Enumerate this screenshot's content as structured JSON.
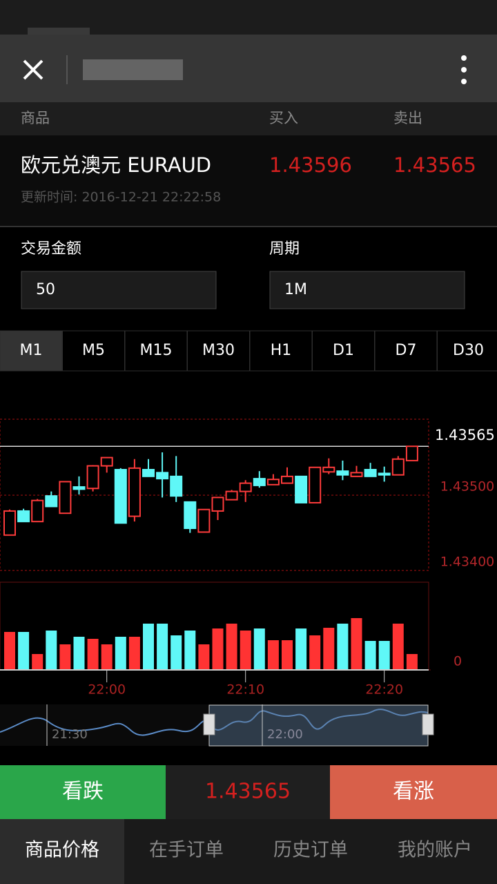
{
  "table_header": {
    "product": "商品",
    "buy": "买入",
    "sell": "卖出"
  },
  "quote": {
    "name": "欧元兑澳元 EURAUD",
    "buy": "1.43596",
    "sell": "1.43565",
    "update_time": "更新时间: 2016-12-21 22:22:58"
  },
  "form": {
    "amount_label": "交易金额",
    "amount": "50",
    "period_label": "周期",
    "period": "1M"
  },
  "timeframes": [
    "M1",
    "M5",
    "M15",
    "M30",
    "H1",
    "D1",
    "D7",
    "D30"
  ],
  "active_timeframe": 0,
  "chart_data": {
    "type": "candlestick",
    "up_color": "#ff3b3b",
    "down_color": "#5ff7f7",
    "series": {
      "open": [
        1.43447,
        1.43479,
        1.43465,
        1.43499,
        1.43476,
        1.43511,
        1.43509,
        1.43539,
        1.43534,
        1.43472,
        1.43534,
        1.4353,
        1.43525,
        1.43491,
        1.43451,
        1.43479,
        1.43494,
        1.43505,
        1.43522,
        1.43514,
        1.43516,
        1.43525,
        1.4349,
        1.43531,
        1.43532,
        1.43525,
        1.43534,
        1.43529,
        1.43527,
        1.43546
      ],
      "high": [
        1.43481,
        1.43482,
        1.43495,
        1.43505,
        1.43518,
        1.43525,
        1.4354,
        1.4355,
        1.43536,
        1.43548,
        1.43548,
        1.43557,
        1.43552,
        1.43491,
        1.43481,
        1.43497,
        1.43507,
        1.4352,
        1.43532,
        1.43528,
        1.43537,
        1.43525,
        1.43537,
        1.43549,
        1.43546,
        1.43539,
        1.43543,
        1.43538,
        1.43552,
        1.43565
      ],
      "low": [
        1.43447,
        1.43465,
        1.43465,
        1.43485,
        1.43476,
        1.43501,
        1.43505,
        1.4353,
        1.43463,
        1.43465,
        1.43525,
        1.43497,
        1.43491,
        1.4345,
        1.43451,
        1.43467,
        1.43494,
        1.43491,
        1.4351,
        1.43514,
        1.43516,
        1.4349,
        1.4349,
        1.43528,
        1.4352,
        1.43525,
        1.43525,
        1.43518,
        1.43527,
        1.43546
      ],
      "close": [
        1.43479,
        1.43465,
        1.43493,
        1.43485,
        1.43518,
        1.43508,
        1.43539,
        1.4355,
        1.43463,
        1.43536,
        1.43525,
        1.43522,
        1.43499,
        1.43456,
        1.43481,
        1.43497,
        1.43505,
        1.43516,
        1.43513,
        1.43521,
        1.43525,
        1.4349,
        1.43537,
        1.43537,
        1.43527,
        1.4353,
        1.43525,
        1.43527,
        1.43548,
        1.43565
      ]
    },
    "ylim": [
      1.434,
      1.43601
    ],
    "yticks": [
      {
        "value": 1.434,
        "label": "1.43400"
      },
      {
        "value": 1.435,
        "label": "1.43500"
      }
    ],
    "last_price": 1.43565,
    "volume": {
      "values": [
        55,
        55,
        23,
        57,
        37,
        48,
        45,
        37,
        48,
        48,
        67,
        67,
        50,
        57,
        37,
        60,
        67,
        57,
        60,
        43,
        43,
        60,
        50,
        61,
        67,
        75,
        42,
        42,
        67,
        23
      ],
      "ylim": [
        0,
        127
      ],
      "yticks": [
        0
      ]
    },
    "xticks": [
      "22:00",
      "22:10",
      "22:20"
    ]
  },
  "navigator": {
    "labels": [
      "21:30",
      "22:00"
    ]
  },
  "actions": {
    "sell": "看跌",
    "price": "1.43565",
    "buy": "看涨"
  },
  "tabs": [
    "商品价格",
    "在手订单",
    "历史订单",
    "我的账户"
  ],
  "active_tab": 0
}
